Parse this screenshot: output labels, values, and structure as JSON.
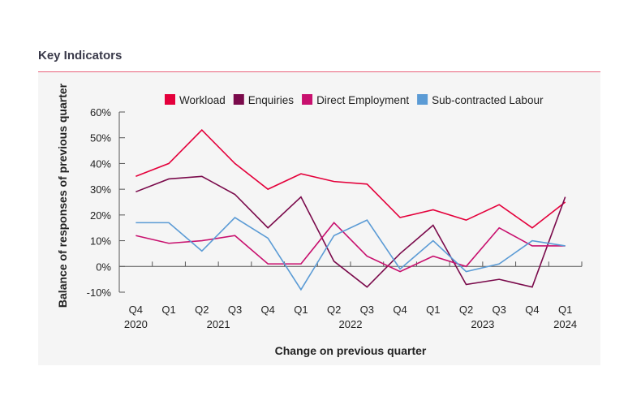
{
  "header": {
    "title": "Key Indicators"
  },
  "chart_data": {
    "type": "line",
    "xlabel": "Change on previous quarter",
    "ylabel": "Balance of responses of previous quarter",
    "ylim": [
      -10,
      60
    ],
    "yticks": [
      "-10%",
      "0%",
      "10%",
      "20%",
      "30%",
      "40%",
      "50%",
      "60%"
    ],
    "categories": [
      "Q4 2020",
      "Q1 2021",
      "Q2 2021",
      "Q3 2021",
      "Q4 2021",
      "Q1 2022",
      "Q2 2022",
      "Q3 2022",
      "Q4 2022",
      "Q1 2023",
      "Q2 2023",
      "Q3 2023",
      "Q4 2023",
      "Q1 2024"
    ],
    "quarter_labels": [
      "Q4",
      "Q1",
      "Q2",
      "Q3",
      "Q4",
      "Q1",
      "Q2",
      "Q3",
      "Q4",
      "Q1",
      "Q2",
      "Q3",
      "Q4",
      "Q1"
    ],
    "year_labels": [
      {
        "index": 0,
        "label": "2020"
      },
      {
        "index": 2.5,
        "label": "2021"
      },
      {
        "index": 6.5,
        "label": "2022"
      },
      {
        "index": 10.5,
        "label": "2023"
      },
      {
        "index": 13,
        "label": "2024"
      }
    ],
    "legend_position": "top",
    "grid": false,
    "series": [
      {
        "name": "Workload",
        "color": "#e4003b",
        "values": [
          35,
          40,
          53,
          40,
          30,
          36,
          33,
          32,
          19,
          22,
          18,
          24,
          15,
          25
        ]
      },
      {
        "name": "Enquiries",
        "color": "#7a0a4b",
        "values": [
          29,
          34,
          35,
          28,
          15,
          27,
          2,
          -8,
          5,
          16,
          -7,
          -5,
          -8,
          27
        ]
      },
      {
        "name": "Direct Employment",
        "color": "#c8106e",
        "values": [
          12,
          9,
          10,
          12,
          1,
          1,
          17,
          4,
          -2,
          4,
          0,
          15,
          8,
          8
        ]
      },
      {
        "name": "Sub-contracted Labour",
        "color": "#5b9bd5",
        "values": [
          17,
          17,
          6,
          19,
          11,
          -9,
          12,
          18,
          -1,
          10,
          -2,
          1,
          10,
          8
        ]
      }
    ]
  }
}
